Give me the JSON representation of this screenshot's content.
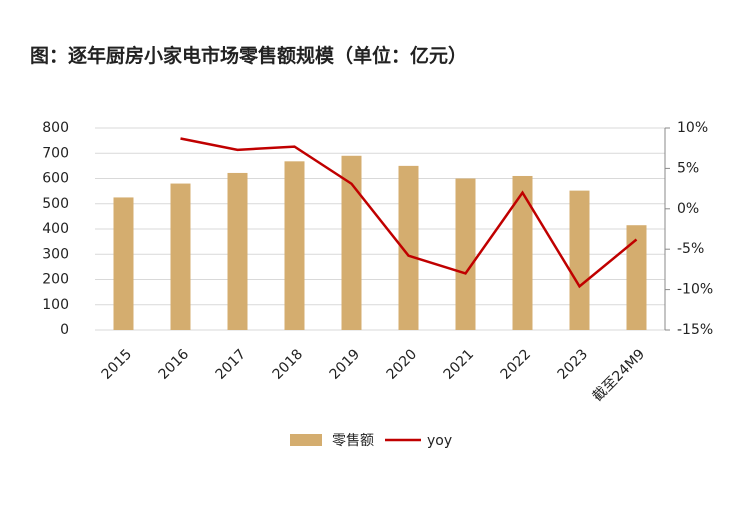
{
  "chart_data": {
    "type": "bar",
    "title": "图：逐年厨房小家电市场零售额规模（单位：亿元）",
    "categories": [
      "2015",
      "2016",
      "2017",
      "2018",
      "2019",
      "2020",
      "2021",
      "2022",
      "2023",
      "截至24M9"
    ],
    "series": [
      {
        "name": "零售额",
        "type": "bar",
        "color": "#d4ad6f",
        "values": [
          525,
          580,
          622,
          668,
          690,
          650,
          600,
          610,
          552,
          415
        ]
      },
      {
        "name": "yoy",
        "type": "line",
        "axis": "y2",
        "color": "#c00000",
        "values": [
          null,
          8.7,
          7.3,
          7.7,
          3.1,
          -5.8,
          -8.0,
          2.0,
          -9.6,
          -3.8
        ]
      }
    ],
    "ylim": [
      0,
      800
    ],
    "yticks": [
      0,
      100,
      200,
      300,
      400,
      500,
      600,
      700,
      800
    ],
    "y2lim": [
      -15,
      10
    ],
    "y2ticks": [
      {
        "value": -15,
        "label": "-15%"
      },
      {
        "value": -10,
        "label": "-10%"
      },
      {
        "value": -5,
        "label": "-5%"
      },
      {
        "value": 0,
        "label": "0%"
      },
      {
        "value": 5,
        "label": "5%"
      },
      {
        "value": 10,
        "label": "10%"
      }
    ],
    "grid": true,
    "legend": "bottom"
  }
}
